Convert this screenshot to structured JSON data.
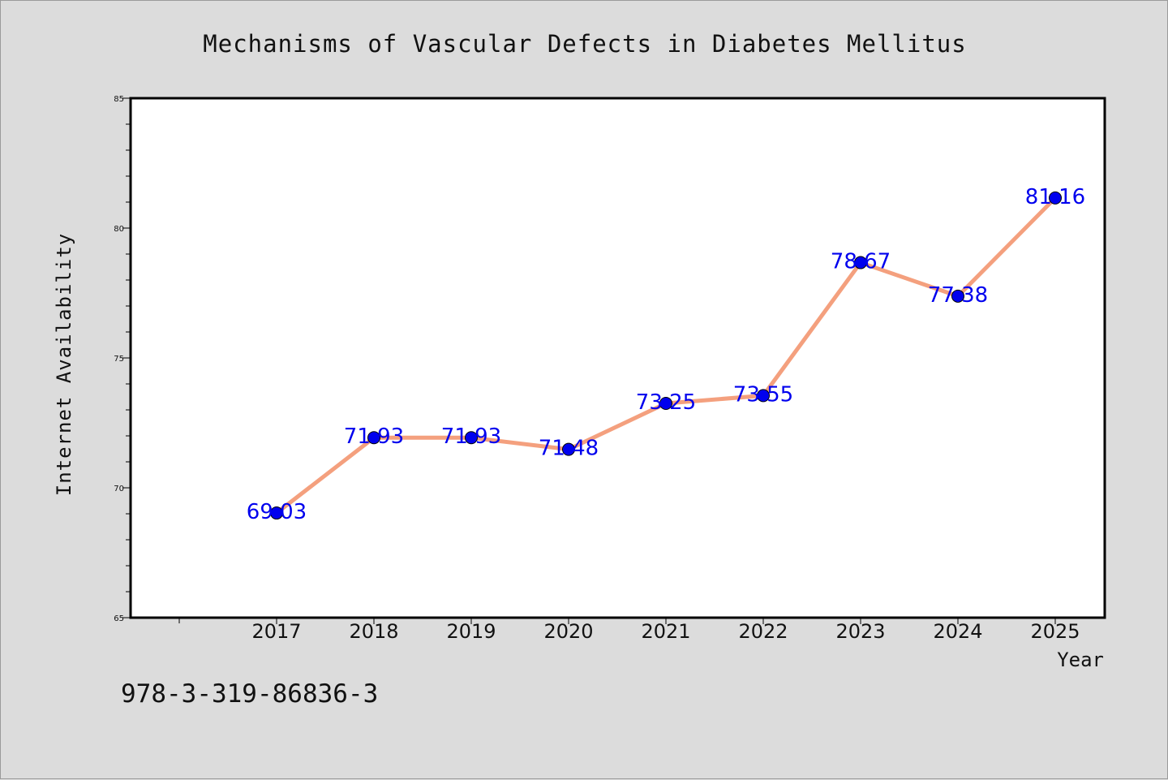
{
  "chart_data": {
    "type": "line",
    "title": "Mechanisms of Vascular Defects in Diabetes Mellitus",
    "xlabel": "Year",
    "ylabel": "Internet Availability",
    "categories": [
      "2017",
      "2018",
      "2019",
      "2020",
      "2021",
      "2022",
      "2023",
      "2024",
      "2025"
    ],
    "series": [
      {
        "values": [
          69.03,
          71.93,
          71.93,
          71.48,
          73.25,
          73.55,
          78.67,
          77.38,
          81.16
        ],
        "data_labels": [
          "69.03",
          "71.93",
          "71.93",
          "71.48",
          "73.25",
          "73.55",
          "78.67",
          "77.38",
          "81.16"
        ],
        "line_color": "#f4a07e",
        "marker_color": "#0000ee"
      }
    ],
    "ylim": [
      65,
      85
    ],
    "yticks": [
      "65",
      "70",
      "75",
      "80",
      "85"
    ],
    "grid": false,
    "legend": "none"
  },
  "footer": {
    "isbn": "978-3-319-86836-3"
  }
}
